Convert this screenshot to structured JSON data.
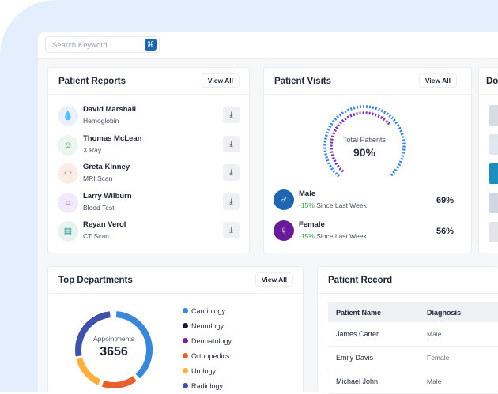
{
  "search": {
    "placeholder": "Search Keyword",
    "shortcut_icon": "command-icon"
  },
  "reports": {
    "title": "Patient Reports",
    "view_all": "View All",
    "items": [
      {
        "name": "David Marshall",
        "test": "Hemoglobin",
        "icon": "drop-icon",
        "color": "#3a7bd5",
        "bg": "#eaf1fb"
      },
      {
        "name": "Thomas McLean",
        "test": "X Ray",
        "icon": "xray-icon",
        "color": "#3a9a4a",
        "bg": "#ebf6ee"
      },
      {
        "name": "Greta Kinney",
        "test": "MRI Scan",
        "icon": "mri-icon",
        "color": "#d9452f",
        "bg": "#fbece7"
      },
      {
        "name": "Larry Wilburn",
        "test": "Blood Test",
        "icon": "blood-test-icon",
        "color": "#7a3fc0",
        "bg": "#f1eafa"
      },
      {
        "name": "Reyan Verol",
        "test": "CT Scan",
        "icon": "ct-scan-icon",
        "color": "#1f8a7a",
        "bg": "#e8f2f0"
      }
    ]
  },
  "visits": {
    "title": "Patient Visits",
    "view_all": "View All",
    "total_label": "Total Patients",
    "total": "90%",
    "total_value": 90,
    "genders": [
      {
        "label": "Male",
        "change": "-15%",
        "since": "Since Last Week",
        "pct": "69%",
        "color": "#1f66b0",
        "icon": "male-icon"
      },
      {
        "label": "Female",
        "change": "-15%",
        "since": "Since Last Week",
        "pct": "56%",
        "color": "#6a1b9a",
        "icon": "female-icon"
      }
    ]
  },
  "doctors": {
    "title": "Do"
  },
  "departments": {
    "title": "Top Departments",
    "view_all": "View All",
    "center_label": "Appointments",
    "center_value": "3656",
    "items": [
      {
        "name": "Cardiology",
        "color": "#3a87d8"
      },
      {
        "name": "Neurology",
        "color": "#151a2e"
      },
      {
        "name": "Dermatology",
        "color": "#7b1fa2"
      },
      {
        "name": "Orthopedics",
        "color": "#e8612c"
      },
      {
        "name": "Urology",
        "color": "#fbb040"
      },
      {
        "name": "Radiology",
        "color": "#3f51a8"
      }
    ]
  },
  "record": {
    "title": "Patient Record",
    "columns": [
      "Patient Name",
      "Diagnosis"
    ],
    "rows": [
      [
        "James Carter",
        "Male"
      ],
      [
        "Emily Davis",
        "Female"
      ],
      [
        "Michael John",
        "Male"
      ]
    ]
  }
}
